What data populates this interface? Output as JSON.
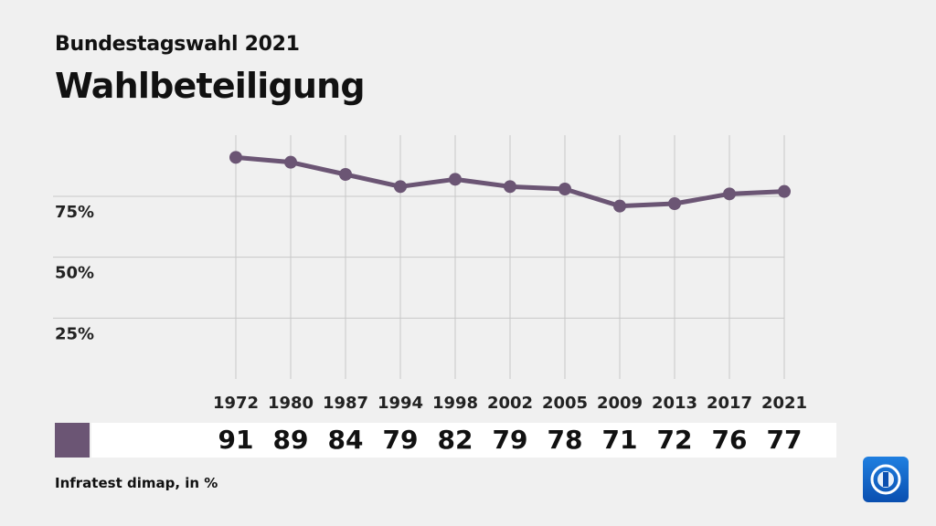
{
  "header": {
    "subtitle": "Bundestagswahl 2021",
    "title": "Wahlbeteiligung"
  },
  "source": "Infratest dimap, in %",
  "logo": {
    "icon": "tagesschau-logo-icon"
  },
  "colors": {
    "series": "#6b5574",
    "grid": "#c8c8c8",
    "background": "#f0f0f0",
    "strip": "#ffffff",
    "logo": "#1565c0"
  },
  "chart_data": {
    "type": "line",
    "title": "",
    "xlabel": "",
    "ylabel": "",
    "ylim": [
      0,
      100
    ],
    "y_ticks": [
      25,
      50,
      75
    ],
    "y_tick_labels": [
      "25%",
      "50%",
      "75%"
    ],
    "grid": true,
    "categories": [
      "1972",
      "1980",
      "1987",
      "1994",
      "1998",
      "2002",
      "2005",
      "2009",
      "2013",
      "2017",
      "2021"
    ],
    "series": [
      {
        "values": [
          91,
          89,
          84,
          79,
          82,
          79,
          78,
          71,
          72,
          76,
          77
        ]
      }
    ]
  }
}
